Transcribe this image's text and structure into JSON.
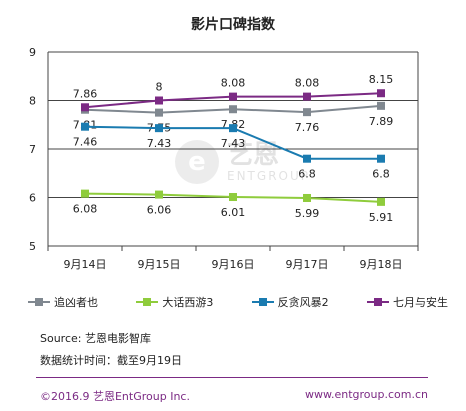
{
  "chart_data": {
    "type": "line",
    "title": "影片口碑指数",
    "categories": [
      "9月14日",
      "9月15日",
      "9月16日",
      "9月17日",
      "9月18日"
    ],
    "ylim": [
      5,
      9
    ],
    "yticks": [
      "5",
      "6",
      "7",
      "8",
      "9"
    ],
    "grid": true,
    "legend_position": "bottom",
    "series": [
      {
        "name": "追凶者也",
        "color": "#808890",
        "marker": "square",
        "values": [
          7.81,
          7.75,
          7.82,
          7.76,
          7.89
        ],
        "labels": [
          "7.81",
          "7.75",
          "7.82",
          "7.76",
          "7.89"
        ],
        "label_pos": "below"
      },
      {
        "name": "大话西游3",
        "color": "#8fcc3c",
        "marker": "square",
        "values": [
          6.08,
          6.06,
          6.01,
          5.99,
          5.91
        ],
        "labels": [
          "6.08",
          "6.06",
          "6.01",
          "5.99",
          "5.91"
        ],
        "label_pos": "below"
      },
      {
        "name": "反贪风暴2",
        "color": "#1a7bb0",
        "marker": "square",
        "values": [
          7.46,
          7.43,
          7.43,
          6.8,
          6.8
        ],
        "labels": [
          "7.46",
          "7.43",
          "7.43",
          "6.8",
          "6.8"
        ],
        "label_pos": "below"
      },
      {
        "name": "七月与安生",
        "color": "#7b2a84",
        "marker": "square",
        "values": [
          7.86,
          8,
          8.08,
          8.08,
          8.15
        ],
        "labels": [
          "7.86",
          "8",
          "8.08",
          "8.08",
          "8.15"
        ],
        "label_pos": "above"
      }
    ]
  },
  "footer": {
    "source": "Source: 艺恩电影智库",
    "stat_time": "数据统计时间：截至9月19日",
    "copyright": "©2016.9 艺恩EntGroup Inc.",
    "website": "www.entgroup.com.cn"
  },
  "watermark": {
    "logo_glyph": "e",
    "cn": "艺恩",
    "en": "ENTGROUP"
  }
}
